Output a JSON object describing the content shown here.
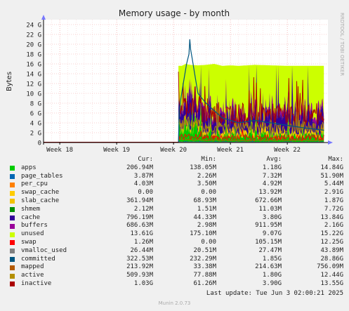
{
  "chart_data": {
    "type": "area",
    "title": "Memory usage - by month",
    "ylabel": "Bytes",
    "ylim": [
      0,
      25
    ],
    "yticks": [
      "0",
      "2 G",
      "4 G",
      "6 G",
      "8 G",
      "10 G",
      "12 G",
      "14 G",
      "16 G",
      "18 G",
      "20 G",
      "22 G",
      "24 G"
    ],
    "xlabels": [
      "Week 18",
      "Week 19",
      "Week 20",
      "Week 21",
      "Week 22"
    ],
    "grid": true,
    "side_text": "RRDTOOL / TOBI OETIKER",
    "x_days": [
      0,
      35
    ],
    "data_start_day": 16.6,
    "totals_after_start": [
      [
        16.6,
        15.6
      ],
      [
        17.0,
        15.6
      ],
      [
        17.5,
        16.0
      ],
      [
        18.0,
        15.8
      ],
      [
        19.0,
        15.7
      ],
      [
        20.0,
        15.8
      ],
      [
        21.0,
        16.0
      ],
      [
        22.0,
        15.6
      ],
      [
        23.0,
        15.7
      ],
      [
        24.0,
        15.6
      ],
      [
        26.0,
        15.8
      ],
      [
        28.0,
        15.7
      ],
      [
        30.0,
        15.6
      ],
      [
        32.0,
        15.6
      ],
      [
        34.5,
        15.6
      ]
    ],
    "committed_max_line": [
      [
        16.6,
        0
      ],
      [
        16.7,
        6
      ],
      [
        16.9,
        9
      ],
      [
        17.2,
        12
      ],
      [
        17.6,
        16
      ],
      [
        17.9,
        18
      ],
      [
        18.0,
        21
      ],
      [
        18.1,
        19
      ],
      [
        18.3,
        17
      ],
      [
        18.6,
        14
      ],
      [
        19.0,
        10
      ],
      [
        19.5,
        9
      ],
      [
        20.0,
        8
      ],
      [
        21.0,
        6.5
      ],
      [
        22.0,
        5
      ],
      [
        24.0,
        4
      ],
      [
        26.0,
        4.5
      ],
      [
        28.0,
        4
      ],
      [
        30.0,
        3.5
      ],
      [
        32.0,
        3
      ],
      [
        34.5,
        2.5
      ]
    ],
    "legend": {
      "headers": [
        "Cur:",
        "Min:",
        "Avg:",
        "Max:"
      ],
      "series": [
        {
          "name": "apps",
          "color": "#00cc00",
          "cur": "206.94M",
          "min": "138.05M",
          "avg": "1.18G",
          "max": "14.84G"
        },
        {
          "name": "page_tables",
          "color": "#0066b3",
          "cur": "3.87M",
          "min": "2.26M",
          "avg": "7.32M",
          "max": "51.90M"
        },
        {
          "name": "per_cpu",
          "color": "#ff8000",
          "cur": "4.03M",
          "min": "3.50M",
          "avg": "4.92M",
          "max": "5.44M"
        },
        {
          "name": "swap_cache",
          "color": "#ffcc00",
          "cur": "0.00",
          "min": "0.00",
          "avg": "13.92M",
          "max": "2.91G"
        },
        {
          "name": "slab_cache",
          "color": "#f2c200",
          "cur": "361.94M",
          "min": "68.93M",
          "avg": "672.66M",
          "max": "1.87G"
        },
        {
          "name": "shmem",
          "color": "#008f00",
          "cur": "2.12M",
          "min": "1.51M",
          "avg": "11.03M",
          "max": "7.72G"
        },
        {
          "name": "cache",
          "color": "#330099",
          "cur": "796.19M",
          "min": "44.33M",
          "avg": "3.80G",
          "max": "13.84G"
        },
        {
          "name": "buffers",
          "color": "#990099",
          "cur": "686.63M",
          "min": "2.98M",
          "avg": "911.95M",
          "max": "2.16G"
        },
        {
          "name": "unused",
          "color": "#ccff00",
          "cur": "13.61G",
          "min": "175.10M",
          "avg": "9.07G",
          "max": "15.22G"
        },
        {
          "name": "swap",
          "color": "#ff0000",
          "cur": "1.26M",
          "min": "0.00",
          "avg": "105.15M",
          "max": "12.25G"
        },
        {
          "name": "vmalloc_used",
          "color": "#808080",
          "cur": "26.44M",
          "min": "20.51M",
          "avg": "27.47M",
          "max": "43.89M"
        },
        {
          "name": "committed",
          "color": "#005580",
          "cur": "322.53M",
          "min": "232.29M",
          "avg": "1.85G",
          "max": "28.86G"
        },
        {
          "name": "mapped",
          "color": "#b35a00",
          "cur": "213.92M",
          "min": "33.38M",
          "avg": "214.63M",
          "max": "756.09M"
        },
        {
          "name": "active",
          "color": "#b38f00",
          "cur": "509.93M",
          "min": "77.88M",
          "avg": "1.80G",
          "max": "12.44G"
        },
        {
          "name": "inactive",
          "color": "#aa0000",
          "cur": "1.03G",
          "min": "61.26M",
          "avg": "3.90G",
          "max": "13.55G"
        }
      ]
    }
  },
  "footer": {
    "last_update": "Last update: Tue Jun  3 02:00:21 2025",
    "munin": "Munin 2.0.73"
  }
}
